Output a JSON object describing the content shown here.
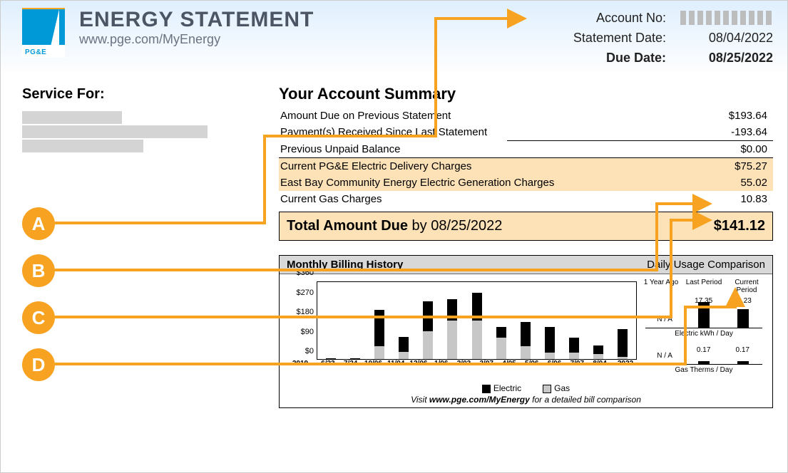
{
  "header": {
    "logo_text": "PG&E",
    "title": "ENERGY STATEMENT",
    "url": "www.pge.com/MyEnergy",
    "rows": [
      {
        "label": "Account No:",
        "value": "",
        "redacted": true,
        "bold_label": false,
        "bold_val": false
      },
      {
        "label": "Statement Date:",
        "value": "08/04/2022",
        "redacted": false,
        "bold_label": false,
        "bold_val": false
      },
      {
        "label": "Due Date:",
        "value": "08/25/2022",
        "redacted": false,
        "bold_label": true,
        "bold_val": true
      }
    ]
  },
  "service_for": {
    "heading": "Service For:",
    "redact_widths": [
      140,
      260,
      170
    ]
  },
  "summary": {
    "title": "Your Account Summary",
    "lines_top": [
      {
        "label": "Amount Due on Previous Statement",
        "value": "$193.64"
      },
      {
        "label": "Payment(s) Received Since Last Statement",
        "value": "-193.64"
      }
    ],
    "prev_unpaid": {
      "label": "Previous Unpaid Balance",
      "value": "$0.00"
    },
    "hl_lines": [
      {
        "label": "Current PG&E Electric Delivery Charges",
        "value": "$75.27"
      },
      {
        "label": "East Bay Community Energy Electric Generation Charges",
        "value": "55.02"
      }
    ],
    "gas": {
      "label": "Current Gas Charges",
      "value": "10.83"
    },
    "total": {
      "label_bold": "Total Amount Due",
      "label_rest": " by 08/25/2022",
      "value": "$141.12"
    }
  },
  "badges": [
    "A",
    "B",
    "C",
    "D"
  ],
  "chart": {
    "title_left": "Monthly Billing History",
    "title_right": "Daily Usage Comparison",
    "ymax": 360,
    "yticks": [
      {
        "v": 0,
        "lab": "$0"
      },
      {
        "v": 90,
        "lab": "$90"
      },
      {
        "v": 180,
        "lab": "$180"
      },
      {
        "v": 270,
        "lab": "$270"
      },
      {
        "v": 360,
        "lab": "$360"
      }
    ],
    "year_left": "2019",
    "year_right": "2022",
    "months": [
      "6/23",
      "7/24",
      "10/06",
      "11/04",
      "12/06",
      "1/06",
      "2/03",
      "3/07",
      "4/05",
      "5/06",
      "6/06",
      "7/07",
      "8/04"
    ],
    "bars": [
      {
        "e": 5,
        "g": 0
      },
      {
        "e": 5,
        "g": 0
      },
      {
        "e": 170,
        "g": 60
      },
      {
        "e": 70,
        "g": 35
      },
      {
        "e": 140,
        "g": 130
      },
      {
        "e": 100,
        "g": 180
      },
      {
        "e": 130,
        "g": 180
      },
      {
        "e": 50,
        "g": 100
      },
      {
        "e": 115,
        "g": 60
      },
      {
        "e": 120,
        "g": 30
      },
      {
        "e": 70,
        "g": 30
      },
      {
        "e": 40,
        "g": 25
      },
      {
        "e": 130,
        "g": 10
      }
    ],
    "legend_e": "Electric",
    "legend_g": "Gas",
    "usage_headers": [
      "1 Year Ago",
      "Last Period",
      "Current Period"
    ],
    "elec": {
      "vals": [
        "N / A",
        "17.35",
        "12.23"
      ],
      "bars": [
        0,
        36,
        26
      ],
      "caption": "Electric kWh / Day"
    },
    "gas": {
      "vals": [
        "N / A",
        "0.17",
        "0.17"
      ],
      "bars": [
        0,
        4,
        4
      ],
      "caption": "Gas Therms / Day"
    },
    "footer_pre": "Visit ",
    "footer_bold": "www.pge.com/MyEnergy",
    "footer_post": " for a detailed bill comparison"
  },
  "colors": {
    "badge": "#f7a321",
    "arrow": "#f7a321",
    "highlight": "#fde2b8",
    "header_grad_top": "#dfeffe",
    "logo": "#0099d8"
  }
}
